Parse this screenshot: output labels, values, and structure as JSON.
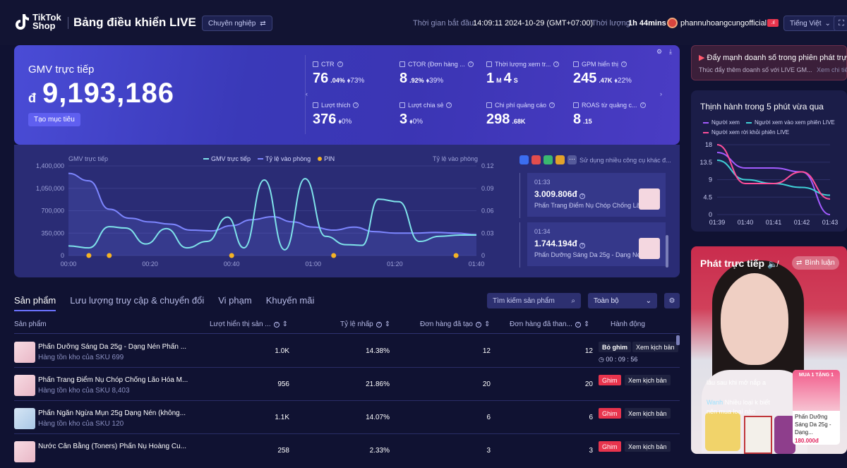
{
  "header": {
    "logo_line1": "TikTok",
    "logo_line2": "Shop",
    "title": "Bảng điều khiển LIVE",
    "mode_button": "Chuyên nghiệp",
    "start_time_label": "Thời gian bắt đầu:",
    "start_time_value": "14:09:11 2024-10-29 (GMT+07:00)",
    "duration_label": "Thời lượng",
    "duration_value": "1h 44mins",
    "account": "phannuhoangcungofficial",
    "live_badge": ".ıl",
    "language": "Tiếng Việt"
  },
  "hero": {
    "gmv_label": "GMV trực tiếp",
    "currency": "đ",
    "gmv_value": "9,193,186",
    "target_button": "Tạo mục tiêu",
    "kpis": [
      {
        "label": "CTR",
        "value": "76",
        "unit": ".04%",
        "delta": "73%"
      },
      {
        "label": "CTOR (Đơn hàng ...",
        "value": "8",
        "unit": ".92%",
        "delta": "39%"
      },
      {
        "label": "Thời lượng xem tr...",
        "value": "1",
        "unit": "M",
        "value2": "4",
        "unit2": "S",
        "delta": ""
      },
      {
        "label": "GPM hiển thị",
        "value": "245",
        "unit": ".47K",
        "delta": "22%"
      },
      {
        "label": "Lượt thích",
        "value": "376",
        "unit": "",
        "delta": "0%"
      },
      {
        "label": "Lượt chia sẻ",
        "value": "3",
        "unit": "",
        "delta": "0%"
      },
      {
        "label": "Chi phí quảng cáo",
        "value": "298",
        "unit": ".68K",
        "delta": ""
      },
      {
        "label": "ROAS từ quảng c...",
        "value": "8",
        "unit": ".15",
        "delta": ""
      }
    ]
  },
  "chart": {
    "left_title": "GMV trực tiếp",
    "right_title": "Tỷ lệ vào phòng",
    "legend": [
      "GMV trực tiếp",
      "Tỷ lệ vào phòng",
      "PIN"
    ],
    "tools_label": "Sử dụng nhiều công cụ khác đ...",
    "colors": {
      "gmv": "#7fe3ea",
      "rate": "#7d86ff",
      "pin": "#f5b325"
    }
  },
  "chart_data": {
    "type": "line",
    "x_ticks": [
      "00:00",
      "00:20",
      "00:40",
      "01:00",
      "01:20",
      "01:40"
    ],
    "y_left_ticks": [
      "1,400,000",
      "1,050,000",
      "700,000",
      "350,000",
      "0"
    ],
    "y_right_ticks": [
      "0.12",
      "0.09",
      "0.06",
      "0.03",
      "0"
    ],
    "ylim_left": [
      0,
      1400000
    ],
    "ylim_right": [
      0,
      0.12
    ],
    "x_range_minutes": [
      0,
      100
    ],
    "series": [
      {
        "name": "GMV trực tiếp",
        "axis": "left",
        "x": [
          0,
          5,
          10,
          14,
          19,
          24,
          29,
          34,
          39,
          43,
          48,
          53,
          58,
          63,
          68,
          72,
          76,
          81,
          86,
          91,
          96,
          100
        ],
        "y": [
          150000,
          120000,
          450000,
          430000,
          180000,
          420000,
          120000,
          220000,
          600000,
          120000,
          1180000,
          90000,
          1200000,
          300000,
          170000,
          160000,
          880000,
          840000,
          220000,
          300000,
          320000,
          320000
        ]
      },
      {
        "name": "Tỷ lệ vào phòng",
        "axis": "right",
        "x": [
          0,
          5,
          10,
          15,
          20,
          25,
          30,
          35,
          40,
          45,
          50,
          55,
          60,
          65,
          70,
          75,
          80,
          85,
          90,
          95,
          100
        ],
        "y": [
          0.11,
          0.1,
          0.062,
          0.05,
          0.045,
          0.042,
          0.034,
          0.033,
          0.04,
          0.048,
          0.052,
          0.045,
          0.038,
          0.034,
          0.038,
          0.032,
          0.03,
          0.03,
          0.031,
          0.03,
          0.028
        ]
      }
    ],
    "pins_minutes": [
      5,
      10,
      40,
      65,
      95
    ]
  },
  "pins": [
    {
      "time": "01:33",
      "amount": "3.009.806đ",
      "name": "Phấn Trang Điểm Nụ Chóp Chống Lã..."
    },
    {
      "time": "01:34",
      "amount": "1.744.194đ",
      "name": "Phấn Dưỡng Sáng Da 25g - Dạng Né..."
    }
  ],
  "tabs": [
    "Sản phẩm",
    "Lưu lượng truy cập & chuyển đổi",
    "Vi phạm",
    "Khuyến mãi"
  ],
  "search_placeholder": "Tìm kiếm sản phẩm",
  "filter_value": "Toàn bộ",
  "table": {
    "headers": [
      "Sản phẩm",
      "Lượt hiển thị sản ...",
      "Tỷ lệ nhấp",
      "Đơn hàng đã tạo",
      "Đơn hàng đã than...",
      "Hành động"
    ],
    "rows": [
      {
        "name": "Phấn Dưỡng Sáng Da 25g - Dạng Nén Phấn ...",
        "sku": "Hàng tồn kho của SKU 699",
        "views": "1.0K",
        "ctr": "14.38%",
        "created": "12",
        "paid": "12",
        "btn1": "Bỏ ghim",
        "btn2": "Xem kịch bản",
        "timer": "00 : 09 : 56"
      },
      {
        "name": "Phấn Trang Điểm Nụ Chóp Chống Lão Hóa M...",
        "sku": "Hàng tồn kho của SKU 8,403",
        "views": "956",
        "ctr": "21.86%",
        "created": "20",
        "paid": "20",
        "btn1": "Ghim",
        "btn2": "Xem kịch bản"
      },
      {
        "name": "Phấn Ngăn Ngừa Mụn 25g Dạng Nén (không...",
        "sku": "Hàng tồn kho của SKU 120",
        "views": "1.1K",
        "ctr": "14.07%",
        "created": "6",
        "paid": "6",
        "btn1": "Ghim",
        "btn2": "Xem kịch bản"
      },
      {
        "name": "Nước Cân Bằng (Toners) Phấn Nụ Hoàng Cu...",
        "sku": "",
        "views": "258",
        "ctr": "2.33%",
        "created": "3",
        "paid": "3",
        "btn1": "Ghim",
        "btn2": "Xem kịch bản"
      }
    ]
  },
  "side_alert": {
    "title": "Đẩy mạnh doanh số trong phiên phát trự...",
    "text": "Thúc đẩy thêm doanh số với LIVE GM...",
    "link": "Xem chi tiết"
  },
  "trend": {
    "title": "Thịnh hành trong 5 phút vừa qua",
    "legend": [
      "Người xem",
      "Người xem vào xem phiên LIVE",
      "Người xem rời khỏi phiên LIVE"
    ],
    "colors": [
      "#a35bff",
      "#3fd0d6",
      "#ff4f9a"
    ],
    "x_ticks": [
      "01:39",
      "01:40",
      "01:41",
      "01:42",
      "01:43"
    ],
    "y_ticks": [
      "18",
      "13.5",
      "9",
      "4.5",
      "0"
    ]
  },
  "trend_chart_data": {
    "type": "line",
    "ylim": [
      0,
      18
    ],
    "x": [
      "01:39",
      "01:40",
      "01:41",
      "01:42",
      "01:43"
    ],
    "series": [
      {
        "name": "Người xem",
        "values": [
          16,
          12,
          12,
          11,
          0
        ]
      },
      {
        "name": "Người xem vào xem phiên LIVE",
        "values": [
          14,
          9,
          8,
          7,
          5
        ]
      },
      {
        "name": "Người xem rời khỏi phiên LIVE",
        "values": [
          18,
          8,
          8,
          11,
          4
        ]
      }
    ]
  },
  "live": {
    "title": "Phát trực tiếp",
    "comment_button": "Bình luận",
    "chat1": "lâu sau khi mở nắp a",
    "chat_user": "Wanh",
    "chat2": "Nhiều loại k biết",
    "chat3": "nên mua loại nào",
    "product_name": "Phấn Dưỡng Sáng Da 25g - Dạng...",
    "product_price": "180.000đ",
    "product_banner": "MUA 1 TẶNG 1"
  }
}
